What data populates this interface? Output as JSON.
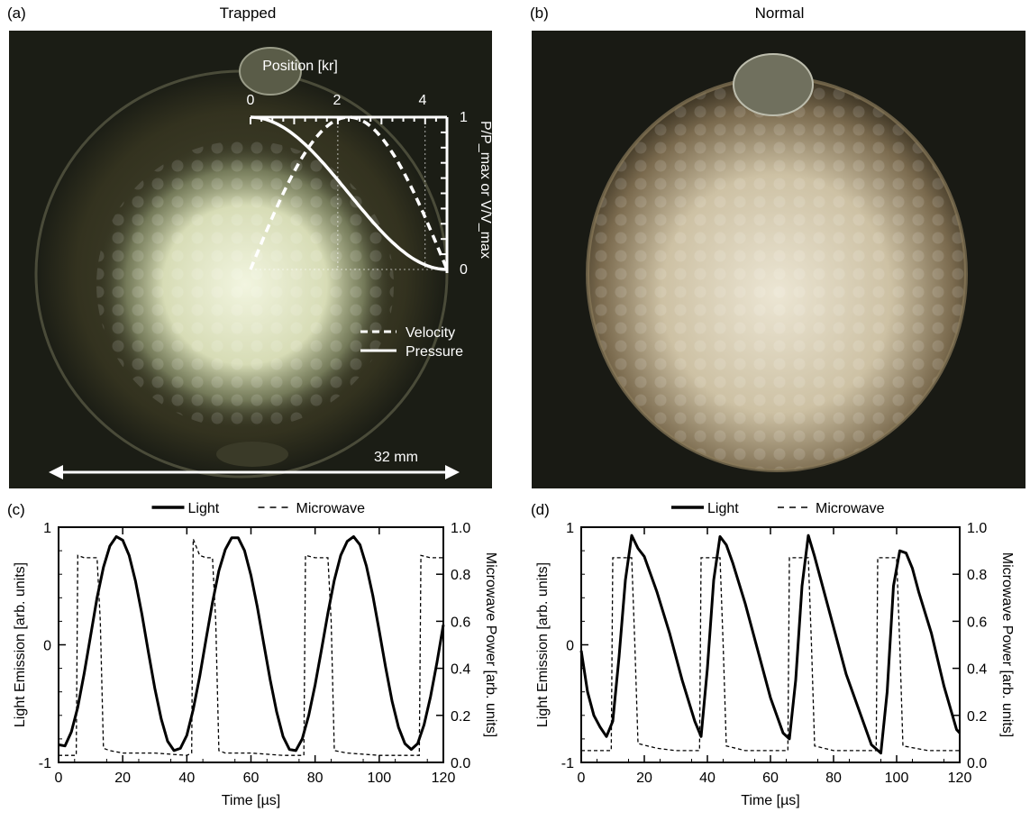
{
  "panels": {
    "a": {
      "letter": "(a)",
      "title": "Trapped",
      "scale_label": "32 mm"
    },
    "b": {
      "letter": "(b)",
      "title": "Normal"
    },
    "c": {
      "letter": "(c)"
    },
    "d": {
      "letter": "(d)"
    }
  },
  "inset": {
    "title": "Position [kr]",
    "x_ticks": [
      "0",
      "2",
      "4"
    ],
    "y_ticks": [
      "1",
      "0"
    ],
    "y_label": "P/P_max or V/V_max",
    "legend_velocity": "Velocity",
    "legend_pressure": "Pressure"
  },
  "colors": {
    "photo_background": "#1a1c14",
    "glow_trapped": "#eef2d8",
    "glow_normal": "#e8e0cc",
    "line": "#000000",
    "inset_line": "#ffffff"
  },
  "chart_data": [
    {
      "id": "c",
      "type": "line",
      "legend": [
        "Light",
        "Microwave"
      ],
      "xlabel": "Time [µs]",
      "ylabel_left": "Light Emission [arb. units]",
      "ylabel_right": "Microwave Power [arb. units]",
      "xlim": [
        0,
        120
      ],
      "ylim_left": [
        -1,
        1
      ],
      "ylim_right": [
        0.0,
        1.0
      ],
      "x_ticks": [
        "0",
        "20",
        "40",
        "60",
        "80",
        "100",
        "120"
      ],
      "y_left_ticks": [
        "1",
        "0",
        "-1"
      ],
      "y_right_ticks": [
        "1.0",
        "0.8",
        "0.6",
        "0.4",
        "0.2",
        "0.0"
      ],
      "light": {
        "x": [
          0,
          2,
          4,
          6,
          8,
          10,
          12,
          14,
          16,
          18,
          20,
          22,
          24,
          26,
          28,
          30,
          32,
          34,
          36,
          38,
          40,
          42,
          44,
          46,
          48,
          50,
          52,
          54,
          56,
          58,
          60,
          62,
          64,
          66,
          68,
          70,
          72,
          74,
          76,
          78,
          80,
          82,
          84,
          86,
          88,
          90,
          92,
          94,
          96,
          98,
          100,
          102,
          104,
          106,
          108,
          110,
          112,
          114,
          116,
          118,
          120
        ],
        "y": [
          -0.85,
          -0.86,
          -0.74,
          -0.53,
          -0.24,
          0.08,
          0.4,
          0.66,
          0.84,
          0.92,
          0.89,
          0.76,
          0.54,
          0.26,
          -0.06,
          -0.37,
          -0.63,
          -0.82,
          -0.9,
          -0.88,
          -0.77,
          -0.55,
          -0.27,
          0.05,
          0.36,
          0.63,
          0.81,
          0.91,
          0.91,
          0.8,
          0.59,
          0.32,
          0.01,
          -0.3,
          -0.57,
          -0.78,
          -0.89,
          -0.9,
          -0.8,
          -0.6,
          -0.34,
          -0.04,
          0.27,
          0.55,
          0.76,
          0.88,
          0.92,
          0.85,
          0.67,
          0.42,
          0.12,
          -0.19,
          -0.48,
          -0.7,
          -0.84,
          -0.89,
          -0.84,
          -0.68,
          -0.44,
          -0.15,
          0.17
        ]
      },
      "microwave": {
        "x": [
          0,
          5.5,
          6,
          8,
          10,
          12,
          13,
          14,
          16,
          20,
          30,
          40,
          41.5,
          42,
          44,
          46,
          48,
          49,
          50,
          52,
          60,
          70,
          76.5,
          77,
          80,
          84,
          85,
          86,
          90,
          100,
          112,
          112.5,
          113,
          116,
          120
        ],
        "y": [
          0.03,
          0.03,
          0.88,
          0.87,
          0.87,
          0.87,
          0.6,
          0.06,
          0.05,
          0.04,
          0.04,
          0.03,
          0.04,
          0.95,
          0.88,
          0.87,
          0.87,
          0.6,
          0.05,
          0.04,
          0.04,
          0.03,
          0.03,
          0.88,
          0.87,
          0.87,
          0.6,
          0.05,
          0.04,
          0.03,
          0.03,
          0.03,
          0.88,
          0.87,
          0.87
        ]
      }
    },
    {
      "id": "d",
      "type": "line",
      "legend": [
        "Light",
        "Microwave"
      ],
      "xlabel": "Time [µs]",
      "ylabel_left": "Light Emission [arb. units]",
      "ylabel_right": "Microwave Power [arb. units]",
      "xlim": [
        0,
        120
      ],
      "ylim_left": [
        -1,
        1
      ],
      "ylim_right": [
        0.0,
        1.0
      ],
      "x_ticks": [
        "0",
        "20",
        "40",
        "60",
        "80",
        "100",
        "120"
      ],
      "y_left_ticks": [
        "1",
        "0",
        "-1"
      ],
      "y_right_ticks": [
        "1.0",
        "0.8",
        "0.6",
        "0.4",
        "0.2",
        "0.0"
      ],
      "light": {
        "x": [
          0,
          2,
          4,
          6,
          8,
          10,
          12,
          14,
          16,
          18,
          20,
          24,
          28,
          32,
          36,
          38,
          40,
          42,
          44,
          46,
          48,
          52,
          56,
          60,
          64,
          66,
          68,
          70,
          72,
          74,
          76,
          80,
          84,
          88,
          92,
          95,
          97,
          99,
          101,
          103,
          105,
          107,
          111,
          115,
          119,
          120
        ],
        "y": [
          -0.05,
          -0.4,
          -0.6,
          -0.7,
          -0.78,
          -0.65,
          -0.1,
          0.55,
          0.93,
          0.82,
          0.75,
          0.45,
          0.1,
          -0.3,
          -0.65,
          -0.78,
          -0.2,
          0.55,
          0.92,
          0.85,
          0.7,
          0.35,
          -0.05,
          -0.45,
          -0.75,
          -0.8,
          -0.3,
          0.5,
          0.93,
          0.75,
          0.55,
          0.15,
          -0.25,
          -0.55,
          -0.85,
          -0.92,
          -0.4,
          0.5,
          0.8,
          0.78,
          0.65,
          0.45,
          0.1,
          -0.35,
          -0.72,
          -0.75
        ]
      },
      "microwave": {
        "x": [
          0,
          9.5,
          10,
          13,
          16,
          17,
          18,
          24,
          30,
          37.5,
          38,
          41,
          44,
          45,
          46,
          52,
          60,
          65.5,
          66,
          69,
          72,
          73,
          74,
          80,
          90,
          93.5,
          94,
          97,
          100,
          101,
          102,
          110,
          120
        ],
        "y": [
          0.05,
          0.05,
          0.87,
          0.87,
          0.87,
          0.5,
          0.08,
          0.06,
          0.05,
          0.05,
          0.87,
          0.87,
          0.87,
          0.5,
          0.07,
          0.05,
          0.05,
          0.05,
          0.87,
          0.87,
          0.87,
          0.5,
          0.07,
          0.05,
          0.05,
          0.05,
          0.87,
          0.87,
          0.87,
          0.5,
          0.07,
          0.05,
          0.05
        ]
      }
    }
  ]
}
